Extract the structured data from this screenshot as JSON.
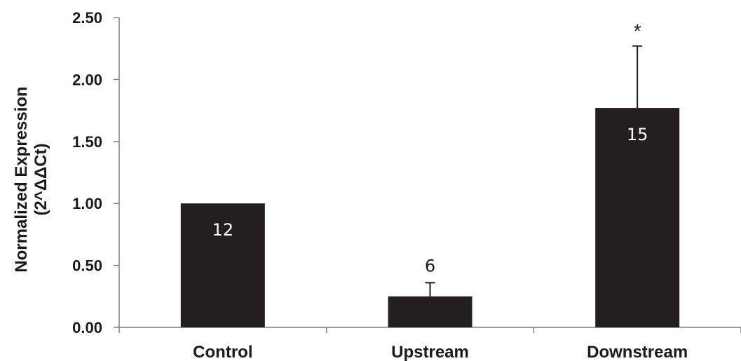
{
  "chart_data": {
    "type": "bar",
    "title": "",
    "xlabel": "",
    "ylabel_lines": [
      "Normalized Expression",
      "(2^ΔΔCt)"
    ],
    "categories": [
      "Control",
      "Upstream",
      "Downstream"
    ],
    "values": [
      1.0,
      0.25,
      1.77
    ],
    "error_plus": [
      0,
      0.11,
      0.5
    ],
    "bar_labels": [
      "12",
      "6",
      "15"
    ],
    "bar_label_position": [
      "inside",
      "above",
      "inside"
    ],
    "significance": [
      "",
      "",
      "*"
    ],
    "ylim": [
      0,
      2.5
    ],
    "yticks": [
      0,
      0.5,
      1.0,
      1.5,
      2.0,
      2.5
    ],
    "ytick_labels": [
      "0.00",
      "0.50",
      "1.00",
      "1.50",
      "2.00",
      "2.50"
    ],
    "grid": false,
    "legend": "none",
    "colors": {
      "bar": "#231f20",
      "bar_label_inside": "#ffffff",
      "bar_label_outside": "#1a1a1a",
      "axis": "#7f7f7f"
    }
  }
}
